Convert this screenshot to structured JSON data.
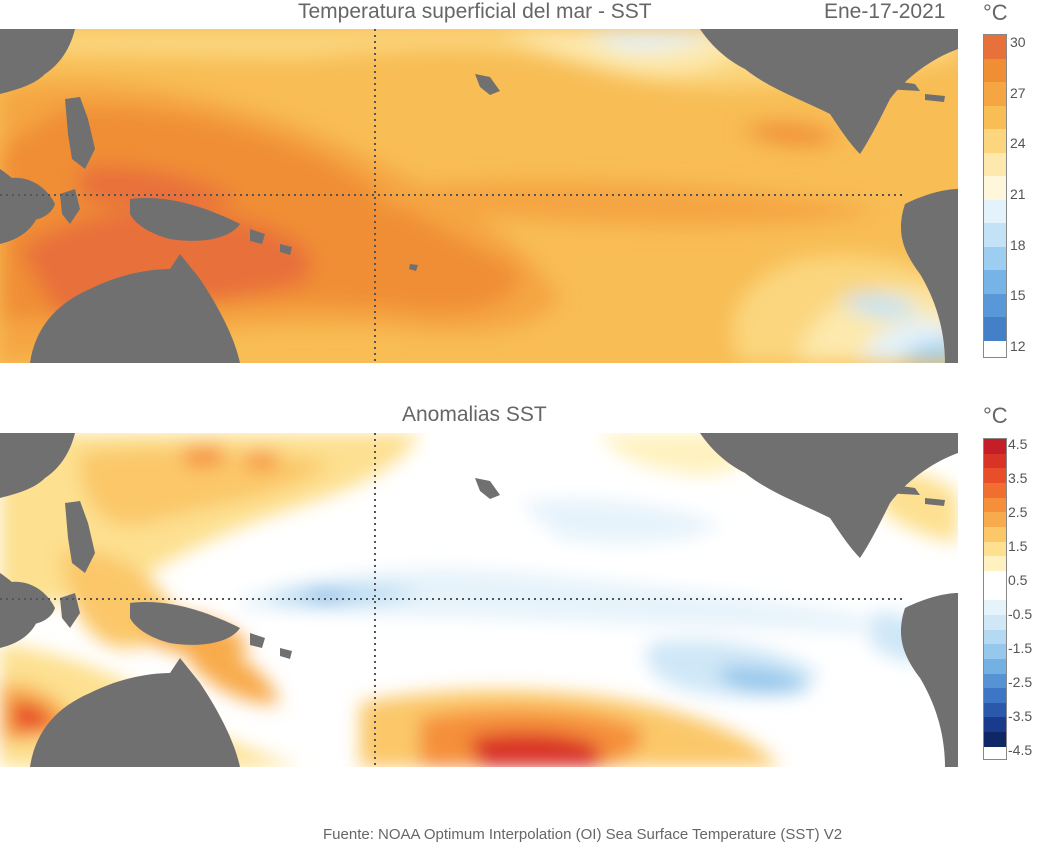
{
  "top_map": {
    "title": "Temperatura superficial del mar - SST",
    "date": "Ene-17-2021",
    "unit": "°C",
    "colorbar": {
      "ticks": [
        "30",
        "27",
        "24",
        "21",
        "18",
        "15",
        "12"
      ],
      "colors": [
        "#e8703a",
        "#f08e35",
        "#f5a542",
        "#f8bd55",
        "#fbd67e",
        "#fde9ad",
        "#fff7dc",
        "#e3f2fb",
        "#c3e2f6",
        "#9dcdf0",
        "#76b3e6",
        "#5898d8",
        "#4480c8"
      ]
    }
  },
  "bottom_map": {
    "title": "Anomalias SST",
    "unit": "°C",
    "colorbar": {
      "ticks": [
        "4.5",
        "3.5",
        "2.5",
        "1.5",
        "0.5",
        "-0.5",
        "-1.5",
        "-2.5",
        "-3.5",
        "-4.5"
      ],
      "colors": [
        "#c41e26",
        "#d93226",
        "#e84e2a",
        "#f06f30",
        "#f58f3a",
        "#f8ab4c",
        "#fbc769",
        "#fde090",
        "#fff2c0",
        "#ffffff",
        "#ffffff",
        "#e6f3fb",
        "#cfe7f7",
        "#b4d9f2",
        "#96c7ec",
        "#74b0e2",
        "#5593d4",
        "#3d76c4",
        "#2a59ac",
        "#1a3b8c",
        "#102765"
      ]
    }
  },
  "colors": {
    "land": "#707070",
    "grid": "#555555"
  },
  "source": "Fuente: NOAA Optimum Interpolation (OI) Sea Surface Temperature (SST) V2"
}
